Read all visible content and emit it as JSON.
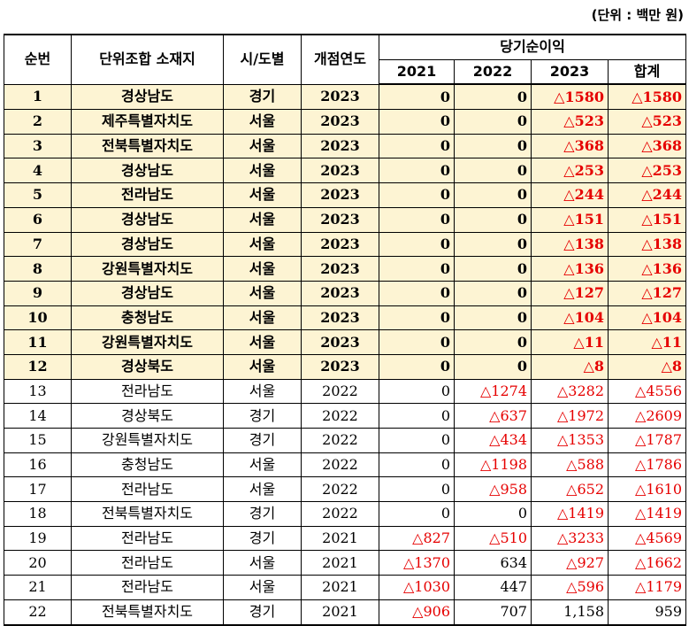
{
  "unit_note": "(단위 : 백만 원)",
  "headers": {
    "no": "순번",
    "location": "단위조합 소재지",
    "region": "시/도별",
    "open_year": "개점연도",
    "net_income": "당기순이익",
    "y2021": "2021",
    "y2022": "2022",
    "y2023": "2023",
    "total": "합계"
  },
  "rows": [
    {
      "no": "1",
      "location": "경상남도",
      "region": "경기",
      "open_year": "2023",
      "y2021": "0",
      "y2022": "0",
      "y2023": "△1580",
      "total": "△1580",
      "highlight": true
    },
    {
      "no": "2",
      "location": "제주특별자치도",
      "region": "서울",
      "open_year": "2023",
      "y2021": "0",
      "y2022": "0",
      "y2023": "△523",
      "total": "△523",
      "highlight": true
    },
    {
      "no": "3",
      "location": "전북특별자치도",
      "region": "서울",
      "open_year": "2023",
      "y2021": "0",
      "y2022": "0",
      "y2023": "△368",
      "total": "△368",
      "highlight": true
    },
    {
      "no": "4",
      "location": "경상남도",
      "region": "서울",
      "open_year": "2023",
      "y2021": "0",
      "y2022": "0",
      "y2023": "△253",
      "total": "△253",
      "highlight": true
    },
    {
      "no": "5",
      "location": "전라남도",
      "region": "서울",
      "open_year": "2023",
      "y2021": "0",
      "y2022": "0",
      "y2023": "△244",
      "total": "△244",
      "highlight": true
    },
    {
      "no": "6",
      "location": "경상남도",
      "region": "서울",
      "open_year": "2023",
      "y2021": "0",
      "y2022": "0",
      "y2023": "△151",
      "total": "△151",
      "highlight": true
    },
    {
      "no": "7",
      "location": "경상남도",
      "region": "서울",
      "open_year": "2023",
      "y2021": "0",
      "y2022": "0",
      "y2023": "△138",
      "total": "△138",
      "highlight": true
    },
    {
      "no": "8",
      "location": "강원특별자치도",
      "region": "서울",
      "open_year": "2023",
      "y2021": "0",
      "y2022": "0",
      "y2023": "△136",
      "total": "△136",
      "highlight": true
    },
    {
      "no": "9",
      "location": "경상남도",
      "region": "서울",
      "open_year": "2023",
      "y2021": "0",
      "y2022": "0",
      "y2023": "△127",
      "total": "△127",
      "highlight": true
    },
    {
      "no": "10",
      "location": "충청남도",
      "region": "서울",
      "open_year": "2023",
      "y2021": "0",
      "y2022": "0",
      "y2023": "△104",
      "total": "△104",
      "highlight": true
    },
    {
      "no": "11",
      "location": "강원특별자치도",
      "region": "서울",
      "open_year": "2023",
      "y2021": "0",
      "y2022": "0",
      "y2023": "△11",
      "total": "△11",
      "highlight": true
    },
    {
      "no": "12",
      "location": "경상북도",
      "region": "서울",
      "open_year": "2023",
      "y2021": "0",
      "y2022": "0",
      "y2023": "△8",
      "total": "△8",
      "highlight": true
    },
    {
      "no": "13",
      "location": "전라남도",
      "region": "서울",
      "open_year": "2022",
      "y2021": "0",
      "y2022": "△1274",
      "y2023": "△3282",
      "total": "△4556",
      "highlight": false
    },
    {
      "no": "14",
      "location": "경상북도",
      "region": "경기",
      "open_year": "2022",
      "y2021": "0",
      "y2022": "△637",
      "y2023": "△1972",
      "total": "△2609",
      "highlight": false
    },
    {
      "no": "15",
      "location": "강원특별자치도",
      "region": "경기",
      "open_year": "2022",
      "y2021": "0",
      "y2022": "△434",
      "y2023": "△1353",
      "total": "△1787",
      "highlight": false
    },
    {
      "no": "16",
      "location": "충청남도",
      "region": "서울",
      "open_year": "2022",
      "y2021": "0",
      "y2022": "△1198",
      "y2023": "△588",
      "total": "△1786",
      "highlight": false
    },
    {
      "no": "17",
      "location": "전라남도",
      "region": "서울",
      "open_year": "2022",
      "y2021": "0",
      "y2022": "△958",
      "y2023": "△652",
      "total": "△1610",
      "highlight": false
    },
    {
      "no": "18",
      "location": "전북특별자치도",
      "region": "경기",
      "open_year": "2022",
      "y2021": "0",
      "y2022": "0",
      "y2023": "△1419",
      "total": "△1419",
      "highlight": false
    },
    {
      "no": "19",
      "location": "전라남도",
      "region": "경기",
      "open_year": "2021",
      "y2021": "△827",
      "y2022": "△510",
      "y2023": "△3233",
      "total": "△4569",
      "highlight": false
    },
    {
      "no": "20",
      "location": "전라남도",
      "region": "서울",
      "open_year": "2021",
      "y2021": "△1370",
      "y2022": "634",
      "y2023": "△927",
      "total": "△1662",
      "highlight": false
    },
    {
      "no": "21",
      "location": "전라남도",
      "region": "서울",
      "open_year": "2021",
      "y2021": "△1030",
      "y2022": "447",
      "y2023": "△596",
      "total": "△1179",
      "highlight": false
    },
    {
      "no": "22",
      "location": "전북특별자치도",
      "region": "경기",
      "open_year": "2021",
      "y2021": "△906",
      "y2022": "707",
      "y2023": "1,158",
      "total": "959",
      "highlight": false
    }
  ],
  "colors": {
    "negative": "#e60000",
    "highlight_bg": "#fdf4d3"
  }
}
